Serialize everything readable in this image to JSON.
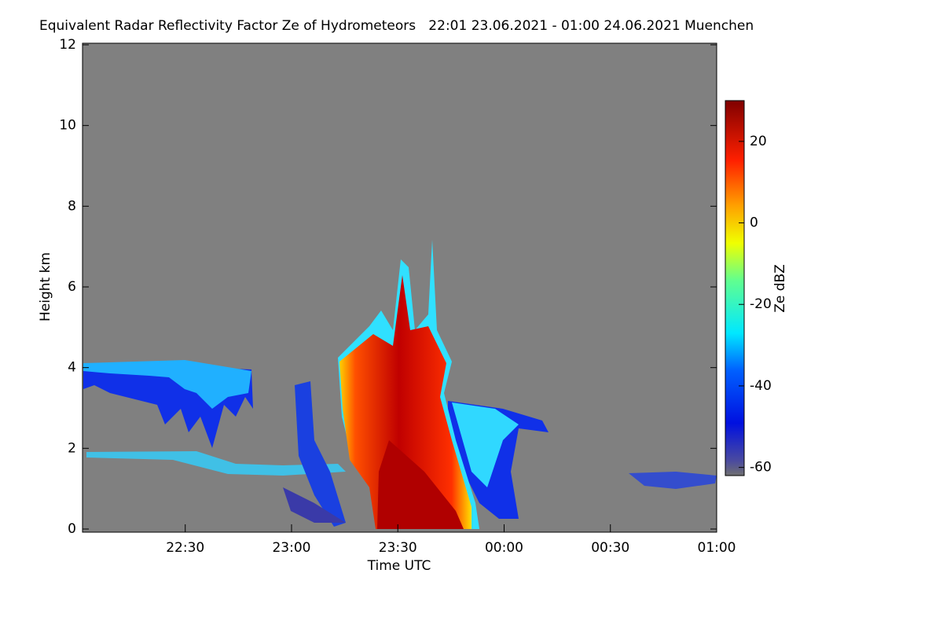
{
  "chart_data": {
    "type": "heatmap",
    "title": "Equivalent Radar Reflectivity Factor Ze of Hydrometeors   22:01 23.06.2021 - 01:00 24.06.2021 Muenchen",
    "x_label": "Time UTC",
    "y_label": "Height km",
    "colorbar_label": "Ze dBZ",
    "xlim": [
      22.0167,
      25.0
    ],
    "xticks": [
      {
        "value": 22.5,
        "label": "22:30"
      },
      {
        "value": 23.0,
        "label": "23:00"
      },
      {
        "value": 23.5,
        "label": "23:30"
      },
      {
        "value": 24.0,
        "label": "00:00"
      },
      {
        "value": 24.5,
        "label": "00:30"
      },
      {
        "value": 25.0,
        "label": "01:00"
      }
    ],
    "ylim": [
      0,
      12
    ],
    "yticks": [
      0,
      2,
      4,
      6,
      8,
      10,
      12
    ],
    "clim": [
      -62,
      30
    ],
    "cticks": [
      -60,
      -40,
      -20,
      0,
      20
    ]
  }
}
